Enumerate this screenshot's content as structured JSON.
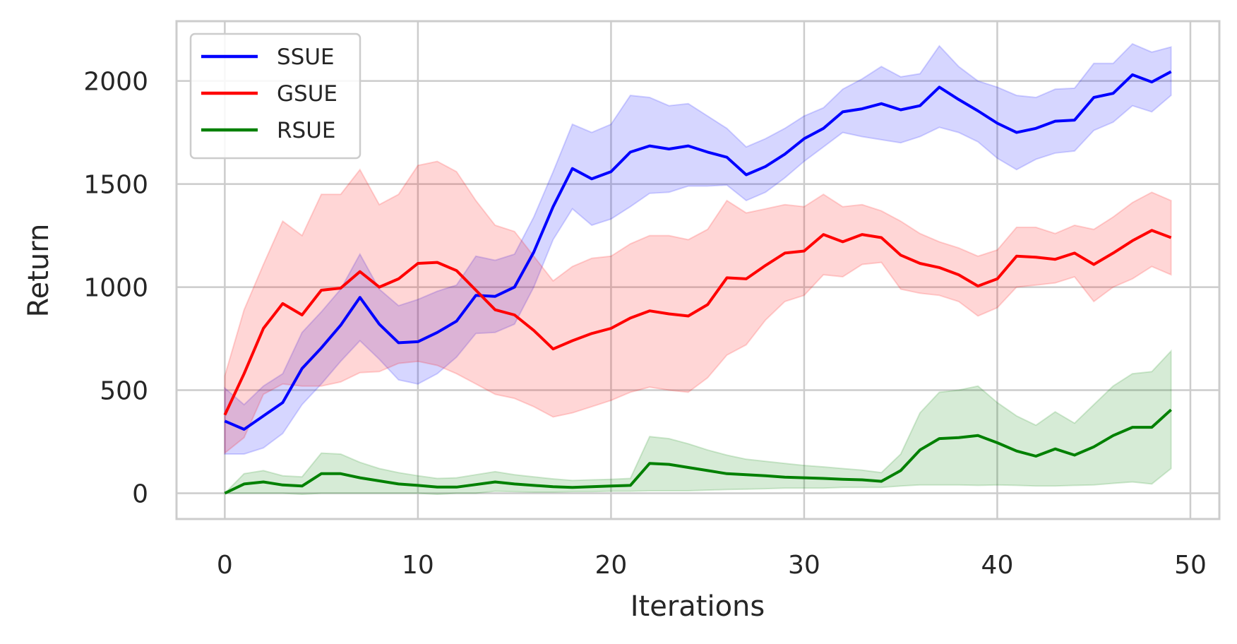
{
  "chart_data": {
    "type": "line",
    "title": "",
    "xlabel": "Iterations",
    "ylabel": "Return",
    "xlim": [
      -2.5,
      51.5
    ],
    "ylim": [
      -125,
      2290
    ],
    "xticks": [
      0,
      10,
      20,
      30,
      40,
      50
    ],
    "yticks": [
      0,
      500,
      1000,
      1500,
      2000
    ],
    "grid": true,
    "legend_position": "upper-left",
    "x": [
      0,
      1,
      2,
      3,
      4,
      5,
      6,
      7,
      8,
      9,
      10,
      11,
      12,
      13,
      14,
      15,
      16,
      17,
      18,
      19,
      20,
      21,
      22,
      23,
      24,
      25,
      26,
      27,
      28,
      29,
      30,
      31,
      32,
      33,
      34,
      35,
      36,
      37,
      38,
      39,
      40,
      41,
      42,
      43,
      44,
      45,
      46,
      47,
      48,
      49
    ],
    "series": [
      {
        "name": "SSUE",
        "color": "#0000ff",
        "band_color": "#0000ff",
        "values": [
          350,
          310,
          375,
          440,
          605,
          705,
          815,
          950,
          820,
          730,
          735,
          780,
          835,
          960,
          955,
          1000,
          1170,
          1390,
          1575,
          1525,
          1560,
          1655,
          1685,
          1670,
          1685,
          1655,
          1630,
          1545,
          1585,
          1645,
          1720,
          1770,
          1850,
          1865,
          1890,
          1860,
          1880,
          1970,
          1910,
          1855,
          1795,
          1750,
          1770,
          1805,
          1810,
          1920,
          1940,
          2030,
          1995,
          2045
        ],
        "lower": [
          190,
          190,
          220,
          290,
          430,
          530,
          640,
          740,
          650,
          550,
          530,
          580,
          660,
          775,
          780,
          820,
          1000,
          1230,
          1380,
          1300,
          1330,
          1390,
          1455,
          1460,
          1490,
          1490,
          1495,
          1420,
          1460,
          1530,
          1610,
          1680,
          1750,
          1730,
          1715,
          1700,
          1730,
          1775,
          1750,
          1705,
          1625,
          1570,
          1620,
          1650,
          1660,
          1760,
          1800,
          1880,
          1850,
          1930
        ],
        "upper": [
          510,
          430,
          520,
          580,
          780,
          880,
          990,
          1160,
          990,
          910,
          940,
          980,
          1010,
          1150,
          1130,
          1160,
          1340,
          1560,
          1790,
          1750,
          1790,
          1930,
          1920,
          1880,
          1890,
          1830,
          1770,
          1680,
          1720,
          1770,
          1830,
          1870,
          1960,
          2010,
          2070,
          2020,
          2035,
          2170,
          2070,
          2000,
          1970,
          1930,
          1920,
          1960,
          1965,
          2085,
          2085,
          2180,
          2140,
          2165
        ]
      },
      {
        "name": "GSUE",
        "color": "#ff0000",
        "band_color": "#ff0000",
        "values": [
          380,
          580,
          800,
          920,
          865,
          985,
          995,
          1075,
          1000,
          1040,
          1115,
          1120,
          1080,
          985,
          890,
          865,
          790,
          700,
          740,
          775,
          800,
          850,
          885,
          870,
          860,
          915,
          1045,
          1040,
          1105,
          1165,
          1175,
          1255,
          1220,
          1255,
          1240,
          1155,
          1115,
          1095,
          1060,
          1005,
          1040,
          1150,
          1145,
          1135,
          1165,
          1110,
          1165,
          1225,
          1275,
          1240
        ],
        "lower": [
          195,
          270,
          480,
          530,
          520,
          520,
          540,
          585,
          590,
          630,
          640,
          620,
          580,
          530,
          480,
          460,
          420,
          370,
          390,
          420,
          450,
          490,
          515,
          500,
          490,
          560,
          670,
          720,
          840,
          930,
          960,
          1060,
          1050,
          1110,
          1120,
          990,
          970,
          960,
          930,
          860,
          900,
          1000,
          1010,
          1020,
          1050,
          930,
          1000,
          1040,
          1100,
          1060
        ],
        "upper": [
          570,
          890,
          1110,
          1320,
          1250,
          1450,
          1450,
          1570,
          1400,
          1450,
          1590,
          1610,
          1560,
          1420,
          1300,
          1270,
          1150,
          1030,
          1100,
          1140,
          1150,
          1210,
          1250,
          1250,
          1230,
          1280,
          1420,
          1360,
          1380,
          1400,
          1390,
          1450,
          1390,
          1400,
          1370,
          1320,
          1260,
          1220,
          1190,
          1150,
          1180,
          1290,
          1290,
          1260,
          1300,
          1280,
          1340,
          1410,
          1460,
          1420
        ]
      },
      {
        "name": "RSUE",
        "color": "#008000",
        "band_color": "#008000",
        "values": [
          0,
          45,
          55,
          40,
          35,
          95,
          95,
          75,
          60,
          45,
          38,
          30,
          30,
          42,
          55,
          45,
          38,
          32,
          28,
          32,
          35,
          38,
          145,
          140,
          125,
          110,
          95,
          90,
          85,
          78,
          75,
          72,
          68,
          65,
          58,
          110,
          210,
          265,
          270,
          280,
          245,
          205,
          180,
          215,
          185,
          225,
          280,
          320,
          320,
          405
        ],
        "lower": [
          0,
          0,
          0,
          0,
          -5,
          0,
          0,
          0,
          0,
          0,
          0,
          -5,
          0,
          0,
          10,
          8,
          5,
          5,
          8,
          8,
          10,
          10,
          12,
          12,
          12,
          15,
          18,
          20,
          22,
          25,
          25,
          25,
          28,
          28,
          28,
          35,
          40,
          40,
          40,
          38,
          40,
          38,
          35,
          35,
          38,
          40,
          48,
          55,
          45,
          120
        ],
        "upper": [
          0,
          95,
          110,
          85,
          80,
          195,
          190,
          150,
          120,
          100,
          85,
          72,
          75,
          90,
          105,
          90,
          80,
          70,
          62,
          65,
          68,
          72,
          275,
          265,
          240,
          210,
          185,
          165,
          155,
          145,
          135,
          128,
          120,
          112,
          100,
          190,
          390,
          490,
          500,
          520,
          440,
          375,
          330,
          395,
          340,
          430,
          520,
          580,
          590,
          690
        ]
      }
    ]
  }
}
